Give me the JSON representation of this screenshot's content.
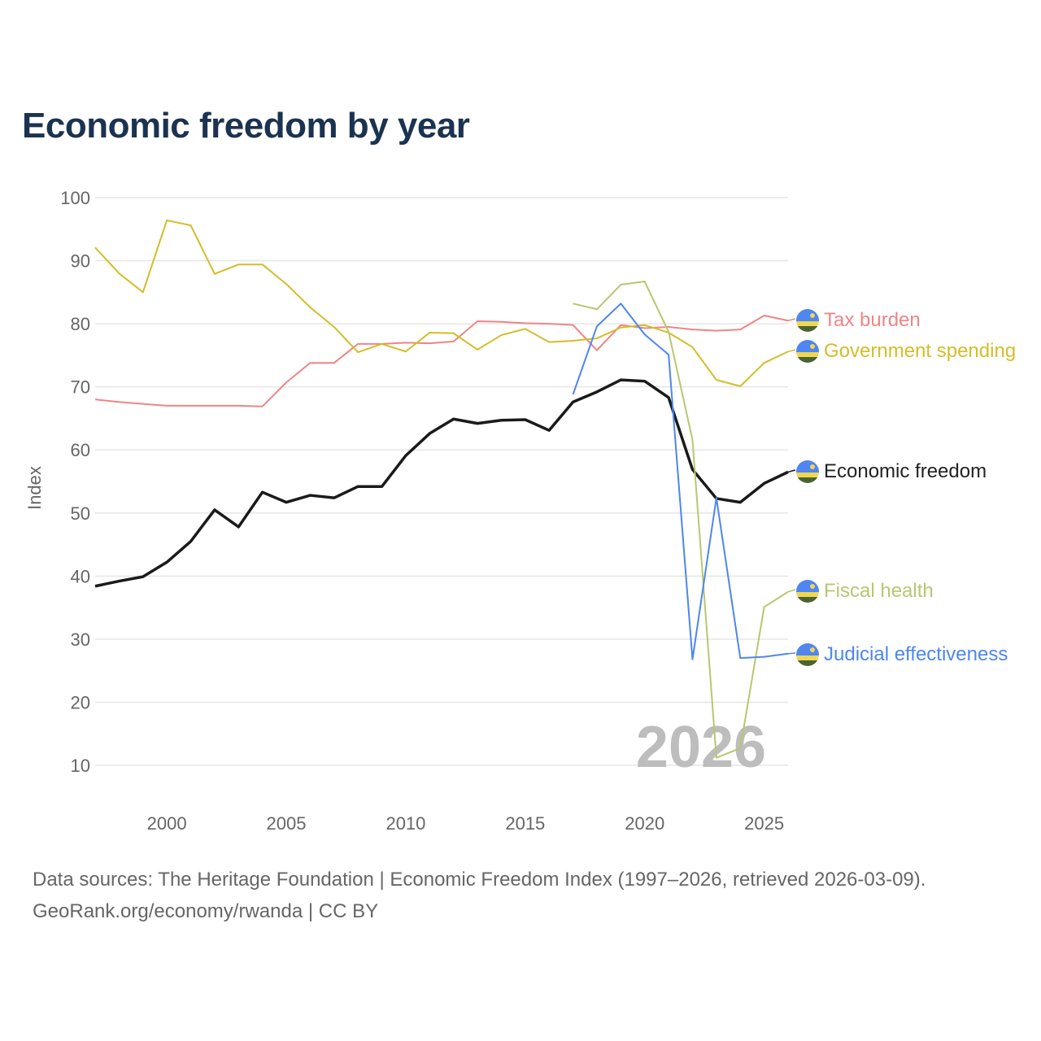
{
  "chart_data": {
    "type": "line",
    "title": "Economic freedom by year",
    "xlabel": "",
    "ylabel": "Index",
    "xlim": [
      1997,
      2026
    ],
    "ylim": [
      10,
      100
    ],
    "yticks": [
      10,
      20,
      30,
      40,
      50,
      60,
      70,
      80,
      90,
      100
    ],
    "xticks": [
      2000,
      2005,
      2010,
      2015,
      2020,
      2025
    ],
    "grid": true,
    "legend": "direct labels at right end of lines",
    "watermark_year": "2026",
    "series": [
      {
        "name": "Tax burden",
        "color": "#ef8585",
        "start": 1997,
        "values": [
          68.0,
          67.6,
          67.3,
          67.0,
          67.0,
          67.0,
          67.0,
          66.9,
          70.7,
          73.8,
          73.8,
          76.8,
          76.8,
          77.0,
          76.9,
          77.2,
          80.4,
          80.3,
          80.1,
          80.0,
          79.8,
          75.8,
          79.8,
          79.3,
          79.5,
          79.1,
          78.9,
          79.1,
          81.3,
          80.5
        ]
      },
      {
        "name": "Government spending",
        "color": "#d4bd2a",
        "start": 1997,
        "values": [
          92.1,
          88.0,
          85.0,
          96.4,
          95.6,
          87.9,
          89.4,
          89.4,
          86.3,
          82.6,
          79.5,
          75.5,
          76.8,
          75.6,
          78.6,
          78.5,
          75.9,
          78.2,
          79.2,
          77.1,
          77.3,
          77.7,
          79.4,
          79.8,
          78.6,
          76.3,
          71.1,
          70.1,
          73.8,
          75.6
        ]
      },
      {
        "name": "Economic freedom",
        "color": "#1a1a1a",
        "start": 1997,
        "values": [
          38.4,
          39.2,
          39.9,
          42.2,
          45.5,
          50.5,
          47.8,
          53.3,
          51.7,
          52.8,
          52.4,
          54.2,
          54.2,
          59.1,
          62.6,
          64.9,
          64.2,
          64.7,
          64.8,
          63.1,
          67.6,
          69.2,
          71.1,
          70.9,
          68.3,
          56.9,
          52.3,
          51.7,
          54.7,
          56.5
        ]
      },
      {
        "name": "Fiscal health",
        "color": "#b8c770",
        "start": 2017,
        "values": [
          83.2,
          82.3,
          86.2,
          86.7,
          78.7,
          61.6,
          11.2,
          12.7,
          35.1,
          37.5
        ]
      },
      {
        "name": "Judicial effectiveness",
        "color": "#4e86ee",
        "start": 2017,
        "values": [
          68.8,
          79.6,
          83.2,
          78.3,
          75.1,
          26.8,
          52.4,
          27.0,
          27.2,
          27.7
        ]
      }
    ]
  },
  "footer": {
    "line1": "Data sources: The Heritage Foundation | Economic Freedom Index (1997–2026, retrieved 2026-03-09).",
    "line2": "GeoRank.org/economy/rwanda | CC BY"
  },
  "icons": {
    "series_label_icon": "rwanda-flag-icon"
  }
}
